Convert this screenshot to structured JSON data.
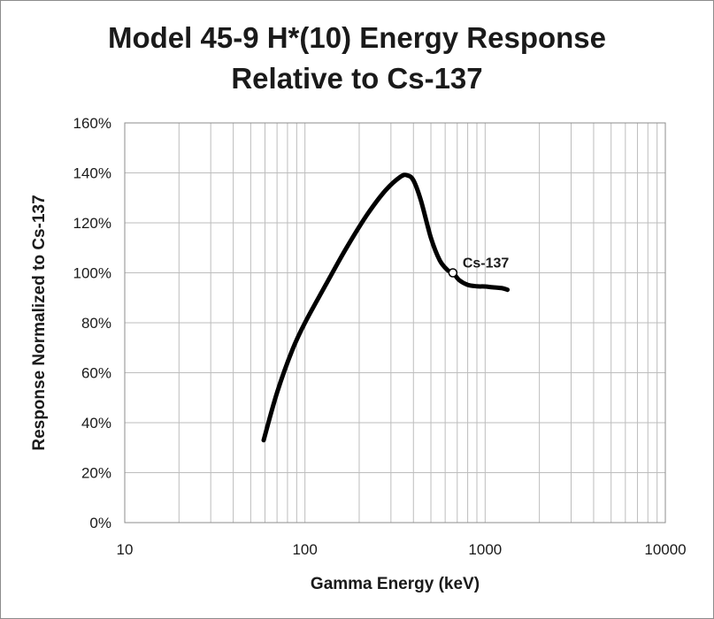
{
  "chart_data": {
    "type": "line",
    "title_line1": "Model 45-9 H*(10) Energy Response",
    "title_line2": "Relative to Cs-137",
    "xlabel": "Gamma Energy (keV)",
    "ylabel": "Response Normalized to Cs-137",
    "xscale": "log",
    "xlim": [
      10,
      10000
    ],
    "ylim": [
      0,
      160
    ],
    "x_ticks": [
      {
        "value": 10,
        "label": "10"
      },
      {
        "value": 100,
        "label": "100"
      },
      {
        "value": 1000,
        "label": "1000"
      },
      {
        "value": 10000,
        "label": "10000"
      }
    ],
    "y_ticks": [
      {
        "value": 0,
        "label": "0%"
      },
      {
        "value": 20,
        "label": "20%"
      },
      {
        "value": 40,
        "label": "40%"
      },
      {
        "value": 60,
        "label": "60%"
      },
      {
        "value": 80,
        "label": "80%"
      },
      {
        "value": 100,
        "label": "100%"
      },
      {
        "value": 120,
        "label": "120%"
      },
      {
        "value": 140,
        "label": "140%"
      },
      {
        "value": 160,
        "label": "160%"
      }
    ],
    "grid": true,
    "legend": "none",
    "series": [
      {
        "color": "#000000",
        "x": [
          59,
          70,
          85,
          100,
          130,
          170,
          220,
          280,
          340,
          370,
          400,
          440,
          500,
          560,
          620,
          662,
          720,
          800,
          900,
          1000,
          1100,
          1250,
          1330
        ],
        "y": [
          33,
          52,
          69,
          80,
          95,
          110,
          123,
          133,
          138.5,
          139,
          137,
          129,
          114,
          105,
          101,
          100,
          97,
          95.2,
          94.6,
          94.5,
          94.2,
          93.8,
          93.2
        ]
      }
    ],
    "annotations": [
      {
        "x": 662,
        "y": 100,
        "label": "Cs-137"
      }
    ]
  }
}
